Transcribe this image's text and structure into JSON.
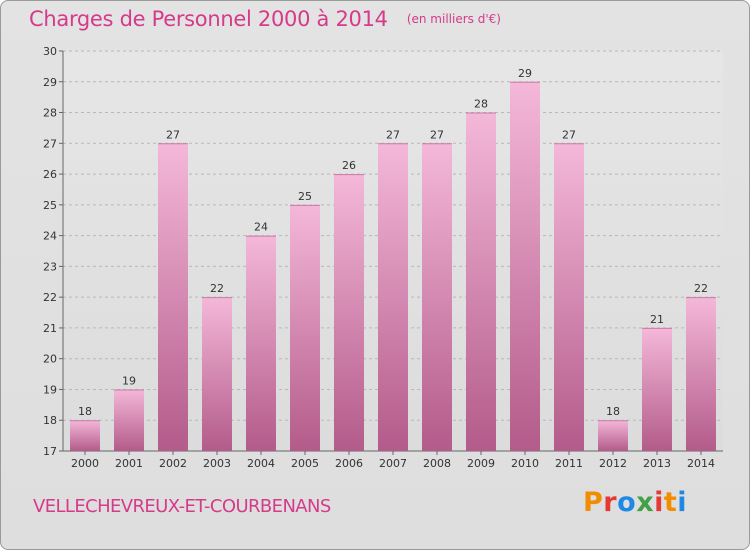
{
  "title": "Charges de Personnel 2000 à 2014",
  "subtitle": "(en milliers d'€)",
  "location": "VELLECHEVREUX-ET-COURBENANS",
  "logo": {
    "letters": [
      "P",
      "r",
      "o",
      "x",
      "i",
      "t",
      "i"
    ],
    "colors": [
      "#f28c00",
      "#e53935",
      "#1e88e5",
      "#43a047",
      "#e53935",
      "#f28c00",
      "#1e88e5"
    ]
  },
  "colors": {
    "accent": "#d63a8a",
    "bar_top": "#f4b8d9",
    "bar_bottom": "#b35b8a",
    "grid": "#b8b8b8"
  },
  "chart_data": {
    "type": "bar",
    "categories": [
      "2000",
      "2001",
      "2002",
      "2003",
      "2004",
      "2005",
      "2006",
      "2007",
      "2008",
      "2009",
      "2010",
      "2011",
      "2012",
      "2013",
      "2014"
    ],
    "values": [
      18,
      19,
      27,
      22,
      24,
      25,
      26,
      27,
      27,
      28,
      29,
      27,
      18,
      21,
      22
    ],
    "ylim": [
      17,
      30
    ],
    "yticks": [
      17,
      18,
      19,
      20,
      21,
      22,
      23,
      24,
      25,
      26,
      27,
      28,
      29,
      30
    ],
    "grid": true,
    "data_labels": true
  }
}
